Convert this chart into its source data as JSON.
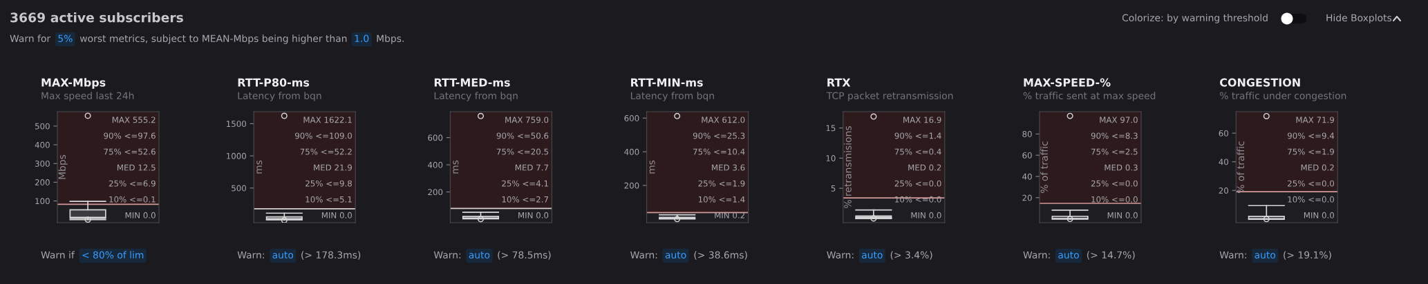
{
  "chart_data": [
    {
      "type": "other",
      "title": "3669 active subscribers",
      "annotations": [
        "Warn for",
        "5%",
        "worst metrics, subject to MEAN-Mbps being higher than",
        "1.0",
        "Mbps.",
        "Colorize: by warning threshold",
        "Hide Boxplots"
      ]
    },
    {
      "type": "box",
      "title": "MAX-Mbps",
      "subtitle": "Max speed last 24h",
      "ylabel": "Mbps",
      "categories": [
        null
      ],
      "boxes": [
        {
          "low": 0.1,
          "q1": 6.9,
          "median": 12.5,
          "q3": 52.6,
          "high": 97.6,
          "outliers": [
            0.0,
            555.2
          ]
        }
      ],
      "ylim": [
        -16,
        577
      ],
      "yticks": [
        100,
        200,
        300,
        400,
        500
      ],
      "tick_labels": "y",
      "bands": [
        {
          "axis": "y",
          "from": 82,
          "to": 577,
          "color": "#2d1a1c"
        }
      ],
      "ref_lines": [
        {
          "axis": "y",
          "value": 82,
          "color": "#d49a9a"
        }
      ],
      "annotations": [
        "MAX 555.2",
        "90% <=97.6",
        "75% <=52.6",
        "MED 12.5",
        "25% <=6.9",
        "10% <=0.1",
        "MIN 0.0",
        "Warn if",
        "< 80% of lim"
      ]
    },
    {
      "type": "box",
      "title": "RTT-P80-ms",
      "subtitle": "Latency from bqn",
      "ylabel": "ms",
      "categories": [
        null
      ],
      "boxes": [
        {
          "low": 5.1,
          "q1": 9.8,
          "median": 21.9,
          "q3": 52.2,
          "high": 109.0,
          "outliers": [
            0.0,
            1622.1
          ]
        }
      ],
      "ylim": [
        -38,
        1687
      ],
      "yticks": [
        500,
        1000,
        1500
      ],
      "tick_labels": "y",
      "bands": [
        {
          "axis": "y",
          "from": 178.3,
          "to": 1687,
          "color": "#2d1a1c"
        }
      ],
      "ref_lines": [
        {
          "axis": "y",
          "value": 178.3,
          "color": "#d8d0d0"
        }
      ],
      "annotations": [
        "MAX 1622.1",
        "90% <=109.0",
        "75% <=52.2",
        "MED 21.9",
        "25% <=9.8",
        "10% <=5.1",
        "MIN 0.0",
        "Warn:",
        "auto",
        "(> 178.3ms)"
      ]
    },
    {
      "type": "box",
      "title": "RTT-MED-ms",
      "subtitle": "Latency from bqn",
      "ylabel": "ms",
      "categories": [
        null
      ],
      "boxes": [
        {
          "low": 2.7,
          "q1": 4.1,
          "median": 7.7,
          "q3": 20.5,
          "high": 50.6,
          "outliers": [
            0.0,
            759.0
          ]
        }
      ],
      "ylim": [
        -26,
        791
      ],
      "yticks": [
        200,
        400,
        600
      ],
      "tick_labels": "y",
      "bands": [
        {
          "axis": "y",
          "from": 78.5,
          "to": 791,
          "color": "#2d1a1c"
        }
      ],
      "ref_lines": [
        {
          "axis": "y",
          "value": 78.5,
          "color": "#d8d0d0"
        }
      ],
      "annotations": [
        "MAX 759.0",
        "90% <=50.6",
        "75% <=20.5",
        "MED 7.7",
        "25% <=4.1",
        "10% <=2.7",
        "MIN 0.0",
        "Warn:",
        "auto",
        "(> 78.5ms)"
      ]
    },
    {
      "type": "box",
      "title": "RTT-MIN-ms",
      "subtitle": "Latency from bqn",
      "ylabel": "ms",
      "categories": [
        null
      ],
      "boxes": [
        {
          "low": 1.4,
          "q1": 1.9,
          "median": 3.6,
          "q3": 10.4,
          "high": 25.3,
          "outliers": [
            0.2,
            612.0
          ]
        }
      ],
      "ylim": [
        -21,
        638
      ],
      "yticks": [
        200,
        400,
        600
      ],
      "tick_labels": "y",
      "bands": [
        {
          "axis": "y",
          "from": 38.6,
          "to": 638,
          "color": "#2d1a1c"
        }
      ],
      "ref_lines": [
        {
          "axis": "y",
          "value": 38.6,
          "color": "#d49a9a"
        }
      ],
      "annotations": [
        "MAX 612.0",
        "90% <=25.3",
        "75% <=10.4",
        "MED 3.6",
        "25% <=1.9",
        "10% <=1.4",
        "MIN 0.2",
        "Warn:",
        "auto",
        "(> 38.6ms)"
      ]
    },
    {
      "type": "box",
      "title": "RTX",
      "subtitle": "TCP packet retransmission",
      "ylabel": "% retransmisions",
      "categories": [
        null
      ],
      "boxes": [
        {
          "low": 0.0,
          "q1": 0.0,
          "median": 0.2,
          "q3": 0.4,
          "high": 1.4,
          "outliers": [
            0.0,
            16.9
          ]
        }
      ],
      "ylim": [
        -0.7,
        17.7
      ],
      "yticks": [
        5,
        10,
        15
      ],
      "tick_labels": "y",
      "bands": [
        {
          "axis": "y",
          "from": 3.4,
          "to": 17.7,
          "color": "#2d1a1c"
        }
      ],
      "ref_lines": [
        {
          "axis": "y",
          "value": 3.4,
          "color": "#d49a9a"
        }
      ],
      "annotations": [
        "MAX 16.9",
        "90% <=1.4",
        "75% <=0.4",
        "MED 0.2",
        "25% <=0.0",
        "10% <=0.0",
        "MIN 0.0",
        "Warn:",
        "auto",
        "(> 3.4%)"
      ]
    },
    {
      "type": "box",
      "title": "MAX-SPEED-%",
      "subtitle": "% traffic sent at max speed",
      "ylabel": "% of traffic",
      "categories": [
        null
      ],
      "boxes": [
        {
          "low": 0.0,
          "q1": 0.0,
          "median": 0.3,
          "q3": 2.5,
          "high": 8.3,
          "outliers": [
            0.0,
            97.0
          ]
        }
      ],
      "ylim": [
        -3.5,
        101
      ],
      "yticks": [
        20,
        40,
        60,
        80
      ],
      "tick_labels": "y",
      "bands": [
        {
          "axis": "y",
          "from": 14.7,
          "to": 101,
          "color": "#2d1a1c"
        }
      ],
      "ref_lines": [
        {
          "axis": "y",
          "value": 14.7,
          "color": "#d49a9a"
        }
      ],
      "annotations": [
        "MAX 97.0",
        "90% <=8.3",
        "75% <=2.5",
        "MED 0.3",
        "25% <=0.0",
        "10% <=0.0",
        "MIN 0.0",
        "Warn:",
        "auto",
        "(> 14.7%)"
      ]
    },
    {
      "type": "box",
      "title": "CONGESTION",
      "subtitle": "% traffic under congestion",
      "ylabel": "% of traffic",
      "categories": [
        null
      ],
      "boxes": [
        {
          "low": 0.0,
          "q1": 0.0,
          "median": 0.2,
          "q3": 1.9,
          "high": 9.4,
          "outliers": [
            0.0,
            71.9
          ]
        }
      ],
      "ylim": [
        -2.5,
        75
      ],
      "yticks": [
        20,
        40,
        60
      ],
      "tick_labels": "y",
      "bands": [
        {
          "axis": "y",
          "from": 19.1,
          "to": 75,
          "color": "#2d1a1c"
        }
      ],
      "ref_lines": [
        {
          "axis": "y",
          "value": 19.1,
          "color": "#d49a9a"
        }
      ],
      "annotations": [
        "MAX 71.9",
        "90% <=9.4",
        "75% <=1.9",
        "MED 0.2",
        "25% <=0.0",
        "10% <=0.0",
        "MIN 0.0",
        "Warn:",
        "auto",
        "(> 19.1%)"
      ]
    }
  ]
}
